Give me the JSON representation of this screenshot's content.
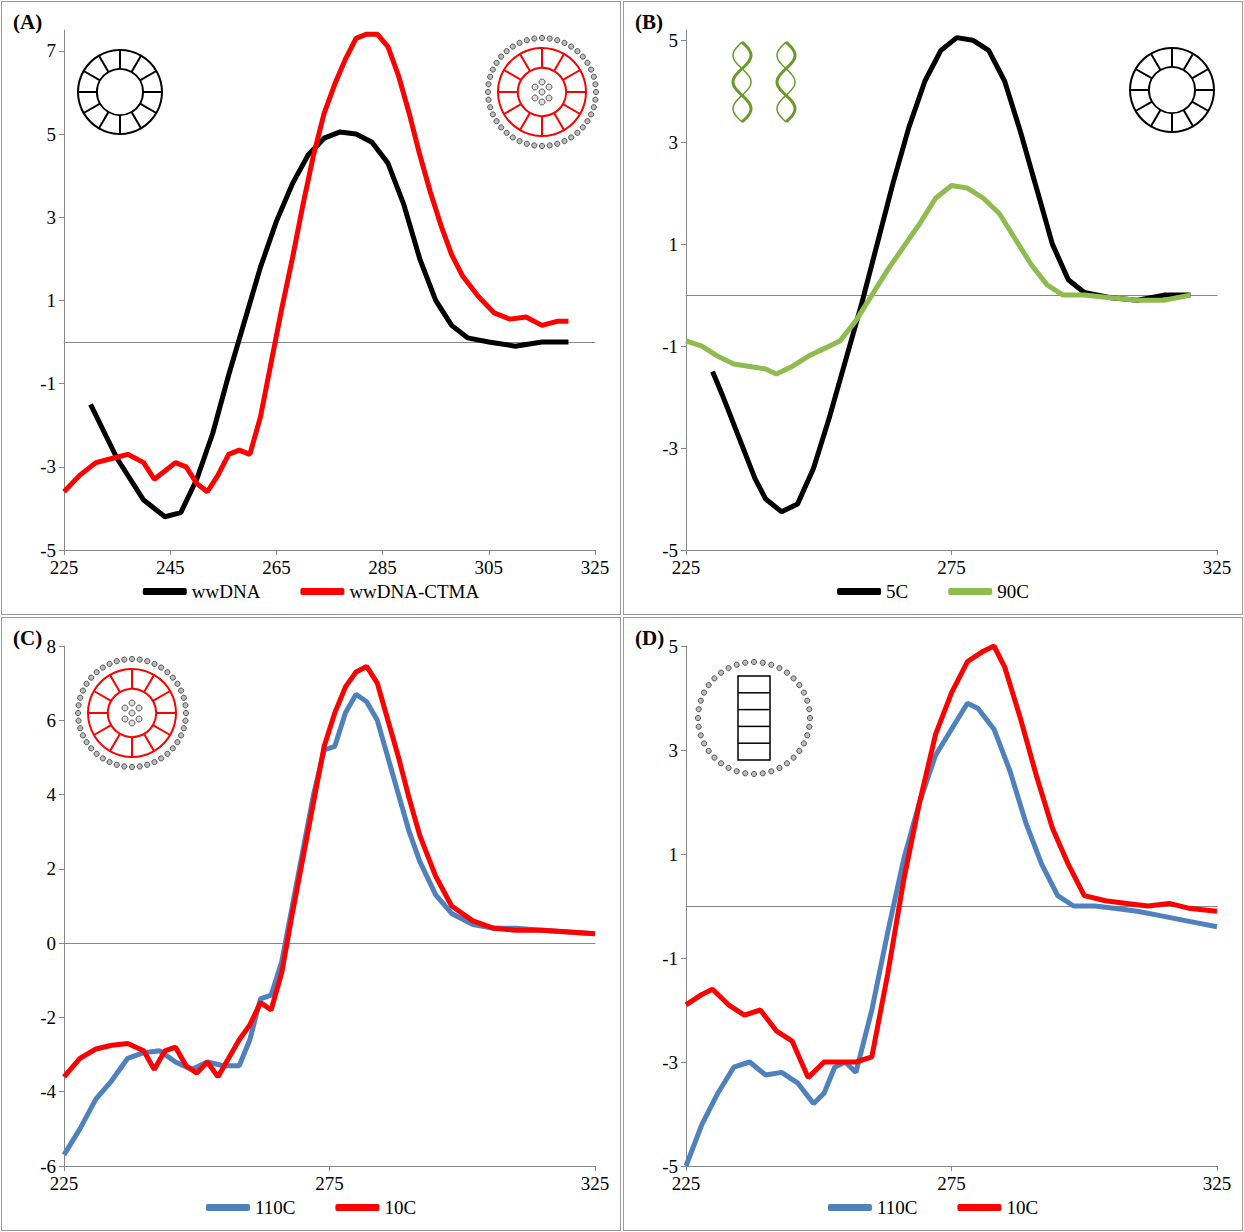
{
  "chart_data": [
    {
      "type": "line",
      "panel_label": "(A)",
      "legend": "bottom",
      "grid": false,
      "xlim": [
        225,
        325
      ],
      "xticks": [
        225,
        245,
        265,
        285,
        305,
        325
      ],
      "ylim": [
        -5,
        7.5
      ],
      "yticks": [
        -5,
        -3,
        -1,
        1,
        3,
        5,
        7
      ],
      "series": [
        {
          "name": "wwDNA",
          "color": "#000000",
          "x": [
            230,
            235,
            240,
            244,
            247,
            250,
            253,
            256,
            259,
            262,
            265,
            268,
            271,
            274,
            277,
            280,
            283,
            286,
            289,
            292,
            295,
            298,
            301,
            305,
            310,
            315,
            320
          ],
          "values": [
            -1.5,
            -2.8,
            -3.8,
            -4.2,
            -4.1,
            -3.3,
            -2.2,
            -0.8,
            0.5,
            1.8,
            2.9,
            3.8,
            4.5,
            4.9,
            5.05,
            5.0,
            4.8,
            4.3,
            3.3,
            2.0,
            1.0,
            0.4,
            0.1,
            0.0,
            -0.1,
            0.0,
            0.0
          ]
        },
        {
          "name": "wwDNA-CTMA",
          "color": "#ff0000",
          "x": [
            225,
            228,
            231,
            234,
            237,
            240,
            242,
            244,
            246,
            248,
            250,
            252,
            254,
            256,
            258,
            260,
            262,
            264,
            266,
            268,
            270,
            272,
            274,
            276,
            278,
            280,
            282,
            284,
            286,
            288,
            290,
            292,
            294,
            296,
            298,
            300,
            303,
            306,
            309,
            312,
            315,
            318,
            320
          ],
          "values": [
            -3.6,
            -3.2,
            -2.9,
            -2.8,
            -2.7,
            -2.9,
            -3.3,
            -3.1,
            -2.9,
            -3.0,
            -3.4,
            -3.6,
            -3.2,
            -2.7,
            -2.6,
            -2.7,
            -1.8,
            -0.5,
            0.8,
            2.0,
            3.3,
            4.5,
            5.5,
            6.2,
            6.8,
            7.3,
            7.4,
            7.4,
            7.1,
            6.4,
            5.5,
            4.5,
            3.6,
            2.8,
            2.1,
            1.6,
            1.1,
            0.7,
            0.55,
            0.6,
            0.4,
            0.5,
            0.5
          ]
        }
      ]
    },
    {
      "type": "line",
      "panel_label": "(B)",
      "legend": "bottom",
      "grid": false,
      "xlim": [
        225,
        325
      ],
      "xticks": [
        225,
        275,
        325
      ],
      "ylim": [
        -5,
        5.2
      ],
      "yticks": [
        -5,
        -3,
        -1,
        1,
        3,
        5
      ],
      "series": [
        {
          "name": "5C",
          "color": "#000000",
          "x": [
            230,
            232,
            235,
            238,
            240,
            243,
            246,
            249,
            252,
            255,
            258,
            261,
            264,
            267,
            270,
            273,
            276,
            279,
            282,
            285,
            288,
            291,
            294,
            297,
            300,
            305,
            310,
            315,
            320
          ],
          "values": [
            -1.5,
            -2.0,
            -2.8,
            -3.6,
            -4.0,
            -4.25,
            -4.1,
            -3.4,
            -2.4,
            -1.3,
            -0.2,
            1.0,
            2.2,
            3.3,
            4.2,
            4.8,
            5.05,
            5.0,
            4.8,
            4.2,
            3.2,
            2.1,
            1.0,
            0.3,
            0.05,
            -0.05,
            -0.1,
            0.0,
            0.0
          ]
        },
        {
          "name": "90C",
          "color": "#8fbc4f",
          "x": [
            225,
            228,
            231,
            234,
            237,
            240,
            242,
            245,
            248,
            251,
            254,
            257,
            260,
            263,
            266,
            269,
            272,
            275,
            278,
            281,
            284,
            287,
            290,
            293,
            296,
            300,
            305,
            310,
            315,
            320
          ],
          "values": [
            -0.9,
            -1.0,
            -1.2,
            -1.35,
            -1.4,
            -1.45,
            -1.55,
            -1.4,
            -1.2,
            -1.05,
            -0.9,
            -0.5,
            0.0,
            0.5,
            0.95,
            1.4,
            1.9,
            2.15,
            2.1,
            1.9,
            1.6,
            1.1,
            0.6,
            0.2,
            0.0,
            0.0,
            -0.05,
            -0.1,
            -0.1,
            0.0
          ]
        }
      ]
    },
    {
      "type": "line",
      "panel_label": "(C)",
      "legend": "bottom",
      "grid": false,
      "xlim": [
        225,
        325
      ],
      "xticks": [
        225,
        275,
        325
      ],
      "ylim": [
        -6,
        8
      ],
      "yticks": [
        -6,
        -4,
        -2,
        0,
        2,
        4,
        6,
        8
      ],
      "series": [
        {
          "name": "110C",
          "color": "#4f81bd",
          "x": [
            225,
            228,
            231,
            234,
            237,
            240,
            243,
            246,
            249,
            252,
            255,
            258,
            260,
            262,
            264,
            266,
            268,
            270,
            272,
            274,
            276,
            278,
            280,
            282,
            284,
            286,
            288,
            290,
            292,
            295,
            298,
            302,
            306,
            310,
            315,
            320,
            325
          ],
          "values": [
            -5.7,
            -5.0,
            -4.2,
            -3.7,
            -3.1,
            -2.95,
            -2.9,
            -3.2,
            -3.4,
            -3.2,
            -3.3,
            -3.3,
            -2.6,
            -1.5,
            -1.4,
            -0.5,
            1.0,
            2.5,
            4.0,
            5.2,
            5.3,
            6.2,
            6.7,
            6.5,
            6.0,
            5.0,
            4.0,
            3.0,
            2.2,
            1.3,
            0.8,
            0.5,
            0.4,
            0.4,
            0.35,
            0.3,
            0.25
          ]
        },
        {
          "name": "10C",
          "color": "#ff0000",
          "x": [
            225,
            228,
            231,
            234,
            237,
            240,
            242,
            244,
            246,
            248,
            250,
            252,
            254,
            256,
            258,
            260,
            262,
            264,
            266,
            268,
            270,
            272,
            274,
            276,
            278,
            280,
            282,
            284,
            286,
            288,
            290,
            292,
            295,
            298,
            302,
            306,
            310,
            315,
            320,
            325
          ],
          "values": [
            -3.6,
            -3.1,
            -2.85,
            -2.75,
            -2.7,
            -2.9,
            -3.4,
            -2.9,
            -2.8,
            -3.3,
            -3.5,
            -3.2,
            -3.6,
            -3.1,
            -2.6,
            -2.2,
            -1.6,
            -1.8,
            -0.8,
            0.8,
            2.3,
            3.8,
            5.3,
            6.2,
            6.9,
            7.3,
            7.45,
            7.0,
            6.0,
            5.0,
            3.9,
            2.9,
            1.8,
            1.0,
            0.6,
            0.4,
            0.35,
            0.35,
            0.3,
            0.25
          ]
        }
      ]
    },
    {
      "type": "line",
      "panel_label": "(D)",
      "legend": "bottom",
      "grid": false,
      "xlim": [
        225,
        325
      ],
      "xticks": [
        225,
        275,
        325
      ],
      "ylim": [
        -5,
        5
      ],
      "yticks": [
        -5,
        -3,
        -1,
        1,
        3,
        5
      ],
      "series": [
        {
          "name": "110C",
          "color": "#4f81bd",
          "x": [
            225,
            228,
            231,
            234,
            237,
            240,
            243,
            246,
            249,
            251,
            253,
            255,
            257,
            260,
            263,
            266,
            269,
            272,
            275,
            278,
            280,
            283,
            286,
            289,
            292,
            295,
            298,
            302,
            306,
            310,
            315,
            320,
            325
          ],
          "values": [
            -5.0,
            -4.2,
            -3.6,
            -3.1,
            -3.0,
            -3.25,
            -3.2,
            -3.4,
            -3.8,
            -3.6,
            -3.1,
            -3.0,
            -3.2,
            -2.0,
            -0.5,
            0.9,
            2.0,
            2.9,
            3.4,
            3.9,
            3.8,
            3.4,
            2.6,
            1.6,
            0.8,
            0.2,
            0.0,
            0.0,
            -0.05,
            -0.1,
            -0.2,
            -0.3,
            -0.4
          ]
        },
        {
          "name": "10C",
          "color": "#ff0000",
          "x": [
            225,
            228,
            230,
            233,
            236,
            239,
            242,
            245,
            248,
            251,
            254,
            257,
            260,
            263,
            266,
            269,
            272,
            275,
            278,
            281,
            283,
            285,
            288,
            291,
            294,
            297,
            300,
            304,
            308,
            312,
            316,
            320,
            325
          ],
          "values": [
            -1.9,
            -1.7,
            -1.6,
            -1.9,
            -2.1,
            -2.0,
            -2.4,
            -2.6,
            -3.3,
            -3.0,
            -3.0,
            -3.0,
            -2.9,
            -1.3,
            0.5,
            2.0,
            3.3,
            4.1,
            4.7,
            4.9,
            5.0,
            4.6,
            3.6,
            2.5,
            1.5,
            0.8,
            0.2,
            0.1,
            0.05,
            0.0,
            0.05,
            -0.05,
            -0.1
          ]
        }
      ]
    }
  ]
}
